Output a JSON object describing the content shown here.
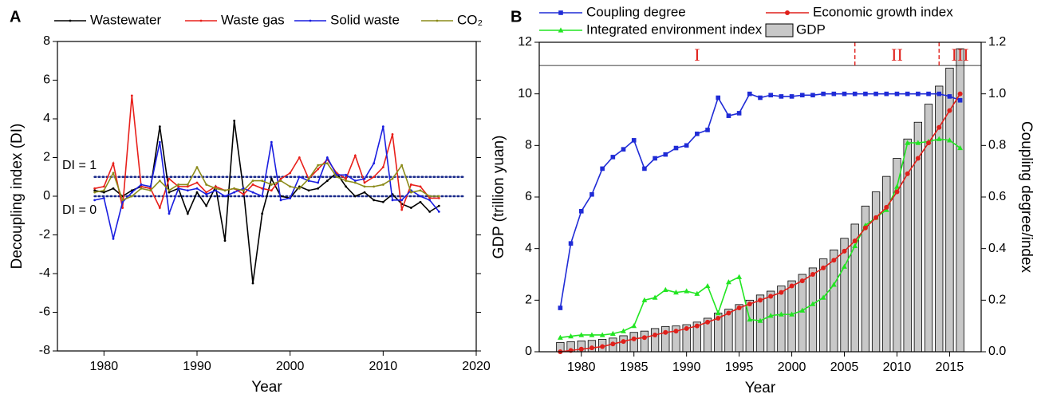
{
  "chart_data": [
    {
      "type": "line",
      "panel": "A",
      "xlabel": "Year",
      "ylabel": "Decoupling index (DI)",
      "legend": "top",
      "xlim": [
        1975,
        2020
      ],
      "xticks": [
        1980,
        1990,
        2000,
        2010,
        2020
      ],
      "ylim": [
        -8,
        8
      ],
      "yticks": [
        -8,
        -6,
        -4,
        -2,
        0,
        2,
        4,
        6,
        8
      ],
      "x": [
        1979,
        1980,
        1981,
        1982,
        1983,
        1984,
        1985,
        1986,
        1987,
        1988,
        1989,
        1990,
        1991,
        1992,
        1993,
        1994,
        1995,
        1996,
        1997,
        1998,
        1999,
        2000,
        2001,
        2002,
        2003,
        2004,
        2005,
        2006,
        2007,
        2008,
        2009,
        2010,
        2011,
        2012,
        2013,
        2014,
        2015,
        2016
      ],
      "series": [
        {
          "name": "Wastewater",
          "color": "#000000",
          "marker": "dot",
          "values": [
            0.3,
            0.2,
            0.4,
            0.0,
            0.3,
            0.5,
            0.4,
            3.6,
            0.2,
            0.4,
            -0.9,
            0.2,
            -0.5,
            0.5,
            -2.3,
            3.9,
            0.3,
            -4.5,
            -0.9,
            0.9,
            0.0,
            -0.1,
            0.5,
            0.3,
            0.4,
            0.8,
            1.2,
            0.5,
            0.0,
            0.2,
            -0.2,
            -0.3,
            0.1,
            -0.4,
            -0.6,
            -0.3,
            -0.8,
            -0.5
          ]
        },
        {
          "name": "Waste gas",
          "color": "#e8201b",
          "marker": "dot",
          "values": [
            0.4,
            0.5,
            1.7,
            -0.6,
            5.2,
            0.5,
            0.4,
            -0.6,
            0.9,
            0.5,
            0.5,
            0.7,
            0.2,
            0.5,
            0.3,
            0.4,
            0.1,
            0.6,
            0.4,
            0.3,
            0.9,
            1.2,
            2.0,
            0.9,
            1.4,
            1.9,
            1.2,
            0.9,
            2.1,
            0.7,
            1.0,
            1.5,
            3.2,
            -0.7,
            0.6,
            0.5,
            -0.1,
            -0.1
          ]
        },
        {
          "name": "Solid waste",
          "color": "#1a1ee0",
          "marker": "dot",
          "values": [
            -0.2,
            -0.1,
            -2.2,
            -0.3,
            0.2,
            0.6,
            0.5,
            2.8,
            -0.9,
            0.4,
            0.3,
            0.4,
            0.1,
            0.3,
            0.0,
            0.2,
            0.4,
            0.2,
            0.0,
            2.8,
            -0.2,
            -0.1,
            1.0,
            0.8,
            0.7,
            2.0,
            1.1,
            1.1,
            0.8,
            0.9,
            1.7,
            3.6,
            -0.2,
            -0.2,
            0.3,
            0.0,
            -0.2,
            -0.8
          ]
        },
        {
          "name": "CO₂",
          "color": "#8b8b1a",
          "marker": "dot",
          "values": [
            0.2,
            0.3,
            1.2,
            -0.2,
            0.0,
            0.4,
            0.3,
            0.8,
            0.3,
            0.6,
            0.6,
            1.5,
            0.6,
            0.4,
            0.3,
            0.4,
            0.3,
            0.8,
            0.8,
            0.6,
            0.8,
            0.5,
            0.4,
            0.9,
            1.6,
            1.7,
            1.0,
            0.8,
            0.7,
            0.5,
            0.5,
            0.6,
            0.9,
            1.6,
            0.2,
            0.3,
            0.0,
            0.0
          ]
        }
      ],
      "annotations": [
        {
          "text": "DI = 1",
          "y": 1
        },
        {
          "text": "DI = 0",
          "y": 0
        }
      ]
    },
    {
      "type": "combo",
      "panel": "B",
      "xlabel": "Year",
      "ylabel": "GDP (trillion yuan)",
      "y2label": "Coupling degree/index",
      "legend": "top",
      "xlim": [
        1976,
        2018
      ],
      "xticks": [
        1980,
        1985,
        1990,
        1995,
        2000,
        2005,
        2010,
        2015
      ],
      "ylim": [
        0,
        12
      ],
      "yticks": [
        0,
        2,
        4,
        6,
        8,
        10,
        12
      ],
      "y2lim": [
        0,
        1.2
      ],
      "y2ticks": [
        {
          "value": 0,
          "label": "0.0"
        },
        0.2,
        0.4,
        0.6,
        0.8,
        {
          "value": 1,
          "label": "1.0"
        },
        1.2
      ],
      "x": [
        1978,
        1979,
        1980,
        1981,
        1982,
        1983,
        1984,
        1985,
        1986,
        1987,
        1988,
        1989,
        1990,
        1991,
        1992,
        1993,
        1994,
        1995,
        1996,
        1997,
        1998,
        1999,
        2000,
        2001,
        2002,
        2003,
        2004,
        2005,
        2006,
        2007,
        2008,
        2009,
        2010,
        2011,
        2012,
        2013,
        2014,
        2015,
        2016
      ],
      "series": [
        {
          "name": "Coupling degree",
          "type": "line",
          "axis": "y2",
          "color": "#1f2bd6",
          "marker": "square",
          "values": [
            0.17,
            0.42,
            0.545,
            0.61,
            0.71,
            0.755,
            0.785,
            0.82,
            0.71,
            0.75,
            0.765,
            0.79,
            0.8,
            0.845,
            0.86,
            0.985,
            0.915,
            0.925,
            1.0,
            0.985,
            0.995,
            0.99,
            0.99,
            0.995,
            0.995,
            1.0,
            1.0,
            1.0,
            1.0,
            1.0,
            1.0,
            1.0,
            1.0,
            1.0,
            1.0,
            1.0,
            1.0,
            0.99,
            0.975
          ]
        },
        {
          "name": "Integrated environment index",
          "type": "line",
          "axis": "y2",
          "color": "#22e522",
          "marker": "triangle",
          "values": [
            0.055,
            0.06,
            0.065,
            0.065,
            0.065,
            0.07,
            0.08,
            0.1,
            0.2,
            0.21,
            0.24,
            0.23,
            0.235,
            0.225,
            0.255,
            0.15,
            0.27,
            0.29,
            0.125,
            0.12,
            0.14,
            0.145,
            0.145,
            0.16,
            0.185,
            0.21,
            0.26,
            0.33,
            0.41,
            0.49,
            0.52,
            0.55,
            0.64,
            0.81,
            0.81,
            0.815,
            0.825,
            0.82,
            0.79
          ]
        },
        {
          "name": "Economic growth index",
          "type": "line",
          "axis": "y2",
          "color": "#e0201b",
          "marker": "circle",
          "values": [
            0.0,
            0.005,
            0.01,
            0.015,
            0.02,
            0.03,
            0.04,
            0.05,
            0.055,
            0.065,
            0.075,
            0.08,
            0.09,
            0.1,
            0.115,
            0.13,
            0.15,
            0.17,
            0.185,
            0.2,
            0.215,
            0.23,
            0.255,
            0.275,
            0.3,
            0.325,
            0.355,
            0.39,
            0.43,
            0.48,
            0.52,
            0.56,
            0.62,
            0.69,
            0.75,
            0.81,
            0.87,
            0.935,
            1.0
          ]
        },
        {
          "name": "GDP",
          "type": "bar",
          "color": "#c8c8c8",
          "values": [
            0.36,
            0.39,
            0.42,
            0.44,
            0.48,
            0.53,
            0.62,
            0.75,
            0.8,
            0.9,
            0.98,
            1.0,
            1.05,
            1.15,
            1.3,
            1.5,
            1.65,
            1.83,
            2.0,
            2.2,
            2.35,
            2.55,
            2.75,
            3.0,
            3.25,
            3.6,
            3.95,
            4.4,
            4.95,
            5.65,
            6.2,
            6.8,
            7.5,
            8.25,
            8.9,
            9.6,
            10.3,
            11.0,
            11.75
          ]
        }
      ],
      "period_line": 11.1,
      "period_boundaries": [
        2006,
        2014
      ],
      "period_labels": [
        "I",
        "II",
        "III"
      ]
    }
  ]
}
